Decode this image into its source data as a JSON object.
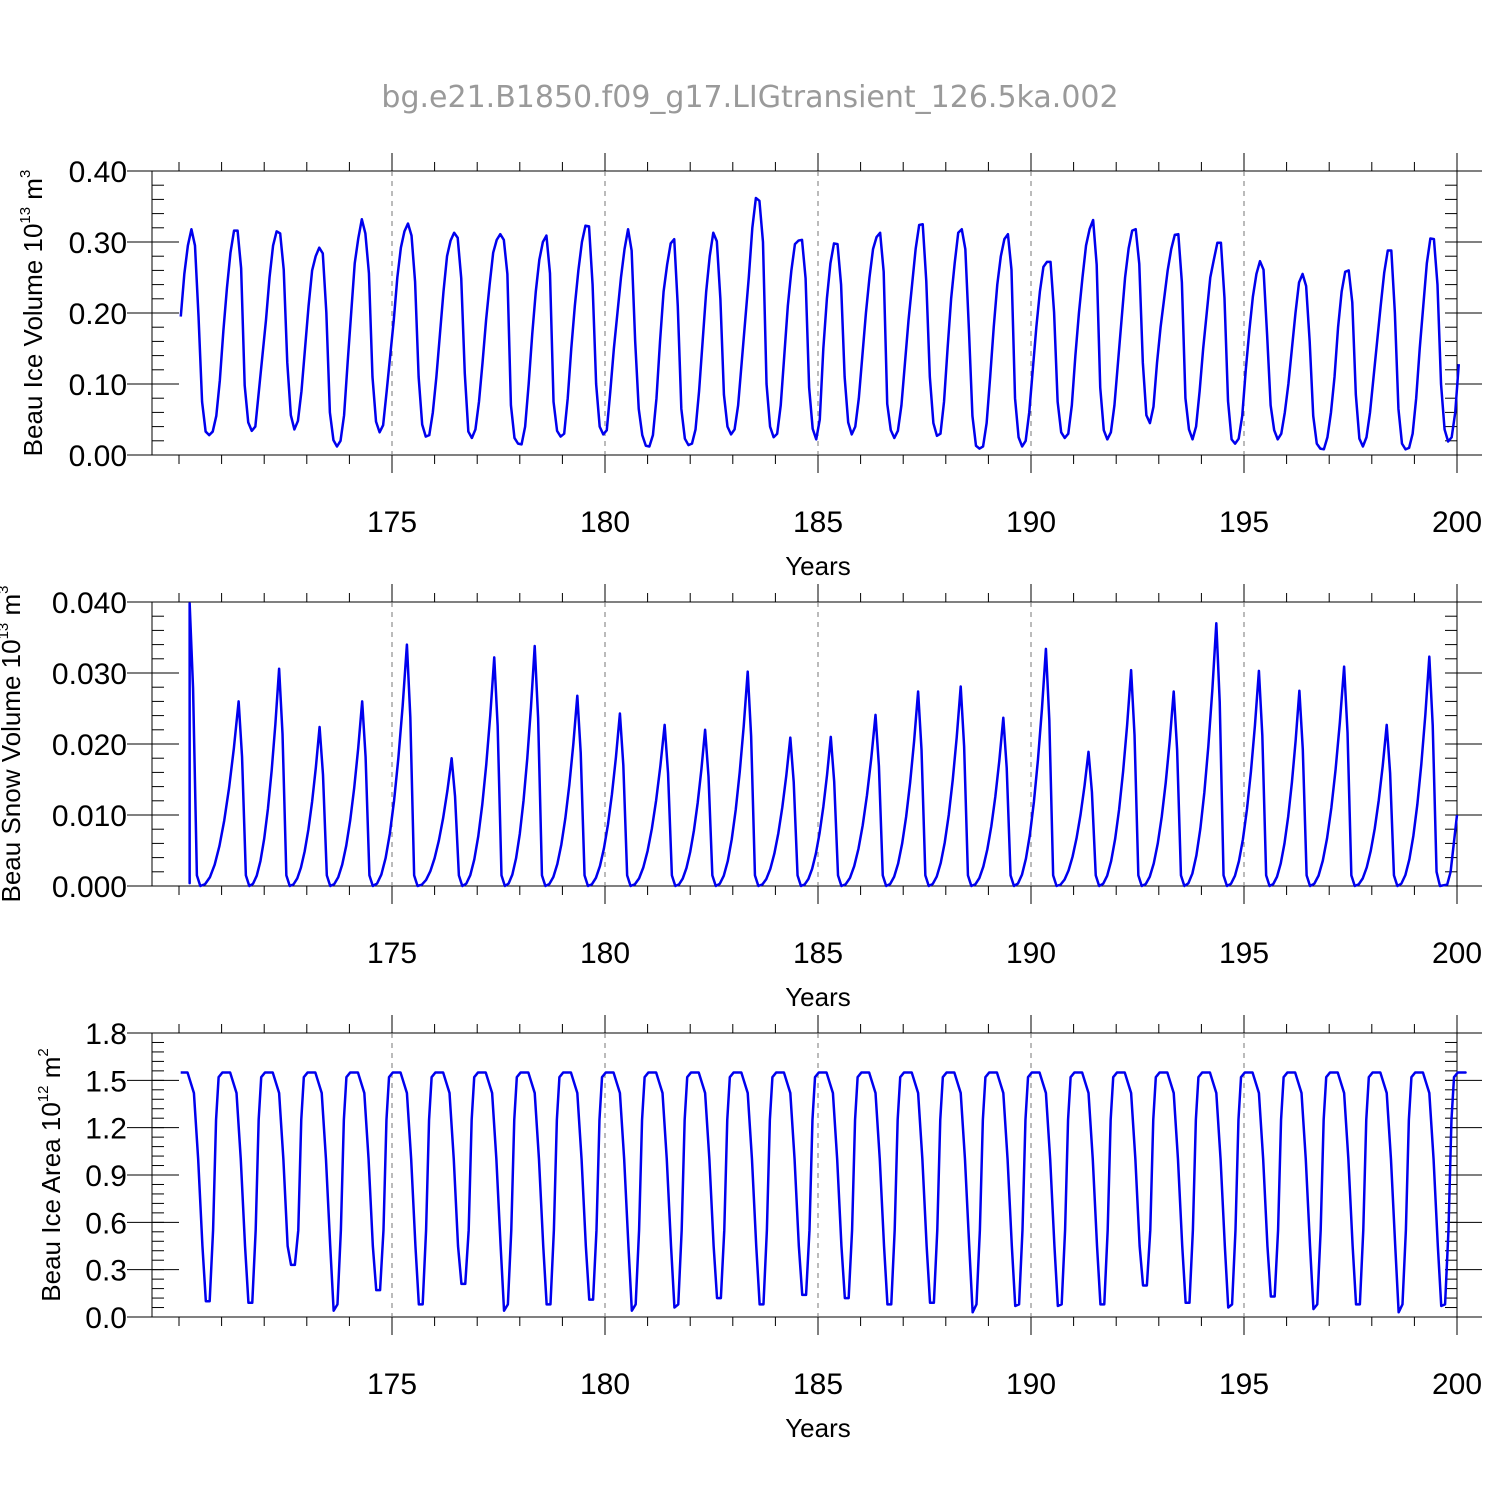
{
  "title": "bg.e21.B1850.f09_g17.LIGtransient_126.5ka.002",
  "colors": {
    "series": "#0000ee",
    "axis": "#000000",
    "title": "#9a9a9a",
    "grid": "#777777"
  },
  "chart_data": [
    {
      "type": "line",
      "ylabel_main": "Beau Ice Volume 10",
      "ylabel_exp": "13",
      "ylabel_unit": " m",
      "ylabel_unit_exp": "3",
      "xlabel": "Years",
      "xlim": [
        170,
        200
      ],
      "ylim": [
        0,
        0.4
      ],
      "xticks": [
        175,
        180,
        185,
        190,
        195,
        200
      ],
      "xtick_labels": [
        "175",
        "180",
        "185",
        "190",
        "195",
        "200"
      ],
      "yticks": [
        0,
        0.1,
        0.2,
        0.3,
        0.4
      ],
      "ytick_labels": [
        "0.00",
        "0.10",
        "0.20",
        "0.30",
        "0.40"
      ],
      "vertical_dashed_lines": [
        175,
        180,
        185,
        190,
        195
      ],
      "series": [
        {
          "x_start": 170.0417,
          "x_step": 0.0833333,
          "values": [
            0.195,
            0.255,
            0.295,
            0.318,
            0.295,
            0.195,
            0.075,
            0.033,
            0.028,
            0.033,
            0.055,
            0.105,
            0.175,
            0.235,
            0.285,
            0.316,
            0.316,
            0.263,
            0.098,
            0.046,
            0.034,
            0.04,
            0.09,
            0.14,
            0.19,
            0.25,
            0.295,
            0.315,
            0.312,
            0.261,
            0.13,
            0.056,
            0.036,
            0.048,
            0.09,
            0.15,
            0.21,
            0.26,
            0.28,
            0.292,
            0.284,
            0.201,
            0.06,
            0.021,
            0.012,
            0.02,
            0.056,
            0.13,
            0.2,
            0.27,
            0.305,
            0.332,
            0.312,
            0.256,
            0.11,
            0.047,
            0.032,
            0.042,
            0.09,
            0.14,
            0.19,
            0.25,
            0.292,
            0.315,
            0.326,
            0.309,
            0.244,
            0.11,
            0.043,
            0.026,
            0.028,
            0.06,
            0.11,
            0.17,
            0.23,
            0.28,
            0.302,
            0.313,
            0.306,
            0.249,
            0.115,
            0.033,
            0.024,
            0.036,
            0.075,
            0.13,
            0.19,
            0.24,
            0.285,
            0.303,
            0.311,
            0.303,
            0.255,
            0.07,
            0.024,
            0.016,
            0.015,
            0.04,
            0.1,
            0.17,
            0.23,
            0.275,
            0.3,
            0.309,
            0.256,
            0.075,
            0.034,
            0.026,
            0.03,
            0.08,
            0.15,
            0.21,
            0.26,
            0.3,
            0.323,
            0.322,
            0.24,
            0.1,
            0.04,
            0.029,
            0.035,
            0.09,
            0.15,
            0.2,
            0.25,
            0.29,
            0.318,
            0.288,
            0.16,
            0.065,
            0.028,
            0.013,
            0.012,
            0.028,
            0.08,
            0.16,
            0.23,
            0.268,
            0.298,
            0.304,
            0.21,
            0.065,
            0.023,
            0.014,
            0.016,
            0.036,
            0.09,
            0.16,
            0.23,
            0.28,
            0.313,
            0.301,
            0.22,
            0.085,
            0.04,
            0.029,
            0.036,
            0.07,
            0.13,
            0.19,
            0.25,
            0.32,
            0.362,
            0.358,
            0.3,
            0.1,
            0.04,
            0.025,
            0.03,
            0.07,
            0.14,
            0.21,
            0.26,
            0.297,
            0.302,
            0.303,
            0.249,
            0.095,
            0.037,
            0.022,
            0.05,
            0.15,
            0.22,
            0.27,
            0.298,
            0.297,
            0.24,
            0.11,
            0.046,
            0.029,
            0.04,
            0.08,
            0.14,
            0.2,
            0.25,
            0.29,
            0.307,
            0.313,
            0.258,
            0.072,
            0.035,
            0.024,
            0.034,
            0.07,
            0.13,
            0.19,
            0.24,
            0.29,
            0.324,
            0.325,
            0.245,
            0.11,
            0.045,
            0.027,
            0.03,
            0.075,
            0.15,
            0.22,
            0.27,
            0.313,
            0.318,
            0.29,
            0.178,
            0.055,
            0.013,
            0.009,
            0.012,
            0.045,
            0.11,
            0.18,
            0.24,
            0.28,
            0.304,
            0.311,
            0.261,
            0.08,
            0.025,
            0.012,
            0.02,
            0.06,
            0.12,
            0.18,
            0.23,
            0.265,
            0.272,
            0.272,
            0.201,
            0.075,
            0.032,
            0.024,
            0.03,
            0.07,
            0.14,
            0.2,
            0.25,
            0.295,
            0.318,
            0.331,
            0.268,
            0.095,
            0.035,
            0.022,
            0.032,
            0.07,
            0.13,
            0.19,
            0.25,
            0.291,
            0.316,
            0.318,
            0.269,
            0.13,
            0.056,
            0.045,
            0.068,
            0.13,
            0.18,
            0.22,
            0.26,
            0.29,
            0.31,
            0.311,
            0.243,
            0.08,
            0.036,
            0.022,
            0.04,
            0.09,
            0.15,
            0.2,
            0.25,
            0.275,
            0.299,
            0.299,
            0.221,
            0.076,
            0.022,
            0.016,
            0.023,
            0.055,
            0.12,
            0.175,
            0.223,
            0.255,
            0.273,
            0.261,
            0.17,
            0.07,
            0.035,
            0.022,
            0.03,
            0.06,
            0.1,
            0.15,
            0.2,
            0.243,
            0.255,
            0.238,
            0.16,
            0.055,
            0.016,
            0.009,
            0.008,
            0.025,
            0.06,
            0.11,
            0.18,
            0.23,
            0.258,
            0.26,
            0.215,
            0.085,
            0.023,
            0.012,
            0.025,
            0.06,
            0.11,
            0.16,
            0.21,
            0.257,
            0.288,
            0.288,
            0.2,
            0.065,
            0.016,
            0.008,
            0.01,
            0.03,
            0.08,
            0.15,
            0.21,
            0.27,
            0.305,
            0.304,
            0.24,
            0.1,
            0.036,
            0.019,
            0.025,
            0.06,
            0.128
          ]
        }
      ]
    },
    {
      "type": "line",
      "ylabel_main": "Beau Snow Volume 10",
      "ylabel_exp": "13",
      "ylabel_unit": " m",
      "ylabel_unit_exp": "3",
      "xlabel": "Years",
      "xlim": [
        170,
        200
      ],
      "ylim": [
        0,
        0.04
      ],
      "xticks": [
        175,
        180,
        185,
        190,
        195,
        200
      ],
      "xtick_labels": [
        "175",
        "180",
        "185",
        "190",
        "195",
        "200"
      ],
      "yticks": [
        0,
        0.01,
        0.02,
        0.03,
        0.04
      ],
      "ytick_labels": [
        "0.000",
        "0.010",
        "0.020",
        "0.030",
        "0.040"
      ],
      "vertical_dashed_lines": [
        175,
        180,
        185,
        190,
        195
      ],
      "series": [
        {
          "peaks": [
            [
              170.25,
              0.0195,
              "start"
            ],
            [
              170.25,
              0.0398
            ],
            [
              171.4,
              0.026
            ],
            [
              172.35,
              0.0306
            ],
            [
              173.3,
              0.0224
            ],
            [
              174.3,
              0.026
            ],
            [
              175.35,
              0.034
            ],
            [
              176.4,
              0.018
            ],
            [
              177.4,
              0.0322
            ],
            [
              178.35,
              0.0338
            ],
            [
              179.35,
              0.0268
            ],
            [
              180.35,
              0.0243
            ],
            [
              181.4,
              0.0227
            ],
            [
              182.35,
              0.022
            ],
            [
              183.35,
              0.0302
            ],
            [
              184.35,
              0.0209
            ],
            [
              185.3,
              0.021
            ],
            [
              186.35,
              0.0241
            ],
            [
              187.35,
              0.0274
            ],
            [
              188.35,
              0.0281
            ],
            [
              189.35,
              0.0237
            ],
            [
              190.35,
              0.0334
            ],
            [
              191.35,
              0.0189
            ],
            [
              192.35,
              0.0304
            ],
            [
              193.35,
              0.0274
            ],
            [
              194.35,
              0.037
            ],
            [
              195.35,
              0.0303
            ],
            [
              196.3,
              0.0275
            ],
            [
              197.35,
              0.0309
            ],
            [
              198.35,
              0.0227
            ],
            [
              199.35,
              0.0323
            ]
          ],
          "end_value": 0.01
        }
      ]
    },
    {
      "type": "line",
      "ylabel_main": "Beau Ice Area 10",
      "ylabel_exp": "12",
      "ylabel_unit": " m",
      "ylabel_unit_exp": "2",
      "xlabel": "Years",
      "xlim": [
        170,
        200
      ],
      "ylim": [
        0,
        1.8
      ],
      "xticks": [
        175,
        180,
        185,
        190,
        195,
        200
      ],
      "xtick_labels": [
        "175",
        "180",
        "185",
        "190",
        "195",
        "200"
      ],
      "yticks": [
        0,
        0.3,
        0.6,
        0.9,
        1.2,
        1.5,
        1.8
      ],
      "ytick_labels": [
        "0.0",
        "0.3",
        "0.6",
        "0.9",
        "1.2",
        "1.5",
        "1.8"
      ],
      "vertical_dashed_lines": [
        175,
        180,
        185,
        190,
        195
      ],
      "series": [
        {
          "minima": [
            0.1,
            0.09,
            0.33,
            0.04,
            0.17,
            0.08,
            0.21,
            0.04,
            0.08,
            0.11,
            0.04,
            0.06,
            0.12,
            0.08,
            0.14,
            0.12,
            0.08,
            0.09,
            0.03,
            0.07,
            0.07,
            0.08,
            0.2,
            0.09,
            0.06,
            0.13,
            0.05,
            0.08,
            0.03,
            0.07
          ],
          "max_value": 1.55,
          "end_value": 1.55
        }
      ]
    }
  ]
}
